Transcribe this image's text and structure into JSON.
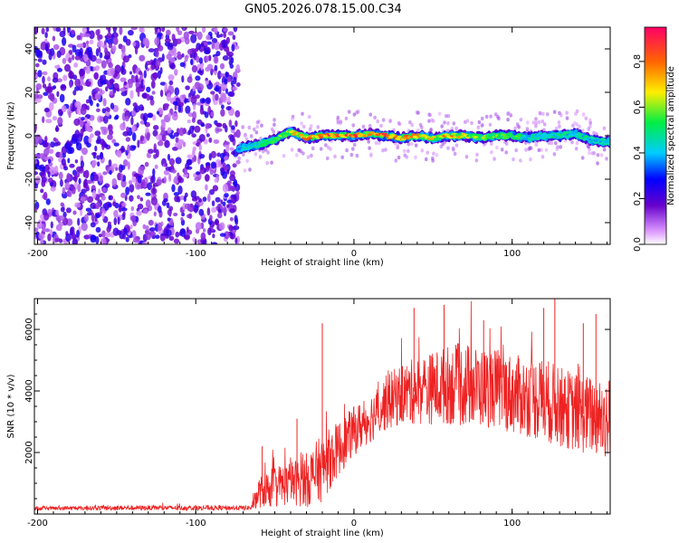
{
  "title": "GN05.2026.078.15.00.C34",
  "colors": {
    "trace": "#ee2222",
    "noise": "#8822ee",
    "axis": "#000000"
  },
  "chart_data": [
    {
      "type": "heatmap",
      "xlabel": "Height of straight line (km)",
      "ylabel": "Frequency (Hz)",
      "xlim": [
        -202,
        162
      ],
      "ylim": [
        -50,
        50
      ],
      "x_ticks": [
        -200,
        -100,
        0,
        100
      ],
      "x_tick_labels": [
        "-200",
        "-100",
        "0",
        "100"
      ],
      "y_ticks": [
        -40,
        -20,
        0,
        20,
        40
      ],
      "y_tick_labels": [
        "-40",
        "-20",
        "0",
        "20",
        "40"
      ],
      "noise_region_x": [
        -202,
        -73
      ],
      "signal_start_x": -73,
      "colorbar": {
        "label": "Normalized spectral amplitude",
        "range": [
          0,
          0.95
        ],
        "ticks": [
          0,
          0.2,
          0.4,
          0.6,
          0.8
        ],
        "tick_labels": [
          "0.0",
          "0.2",
          "0.4",
          "0.6",
          "0.8"
        ]
      },
      "ridge": {
        "x": [
          -73,
          -60,
          -50,
          -40,
          -30,
          -20,
          -10,
          0,
          10,
          20,
          30,
          40,
          50,
          60,
          70,
          80,
          90,
          100,
          110,
          120,
          130,
          140,
          150,
          162
        ],
        "freq": [
          -6,
          -4,
          -2,
          2,
          -1,
          0,
          0,
          0,
          1,
          0,
          -1,
          0,
          -1,
          0,
          0,
          -1,
          0,
          0,
          -1,
          0,
          0,
          1,
          -2,
          -3
        ],
        "amplitude": [
          0.4,
          0.5,
          0.6,
          0.7,
          0.8,
          0.9,
          0.9,
          0.9,
          0.8,
          0.9,
          0.8,
          0.8,
          0.7,
          0.8,
          0.7,
          0.6,
          0.6,
          0.6,
          0.5,
          0.5,
          0.5,
          0.5,
          0.5,
          0.5
        ]
      }
    },
    {
      "type": "line",
      "xlabel": "Height of straight line (km)",
      "ylabel": "SNR (10 * v/v)",
      "xlim": [
        -202,
        162
      ],
      "ylim": [
        0,
        7000
      ],
      "x_ticks": [
        -200,
        -100,
        0,
        100
      ],
      "x_tick_labels": [
        "-200",
        "-100",
        "0",
        "100"
      ],
      "y_ticks": [
        2000,
        4000,
        6000
      ],
      "y_tick_labels": [
        "2000",
        "4000",
        "6000"
      ],
      "series": [
        {
          "color": "#ee2222",
          "envelope_x": [
            -202,
            -150,
            -100,
            -65,
            -60,
            -50,
            -40,
            -30,
            -20,
            -10,
            0,
            10,
            20,
            30,
            40,
            50,
            60,
            70,
            80,
            90,
            100,
            110,
            120,
            130,
            140,
            150,
            162
          ],
          "mean": [
            180,
            200,
            200,
            200,
            700,
            900,
            1000,
            1100,
            1500,
            2100,
            2700,
            3100,
            3600,
            3900,
            4000,
            4100,
            4200,
            4200,
            4100,
            4100,
            3900,
            3800,
            3700,
            3500,
            3300,
            3200,
            3100
          ],
          "spread": [
            60,
            80,
            80,
            80,
            500,
            700,
            700,
            900,
            1100,
            900,
            800,
            800,
            900,
            1000,
            1100,
            1200,
            1300,
            1400,
            1300,
            1300,
            1300,
            1300,
            1400,
            1300,
            1300,
            1300,
            1400
          ],
          "spikes": [
            [
              -58,
              2200
            ],
            [
              -36,
              3100
            ],
            [
              -20,
              6200
            ],
            [
              38,
              6700
            ],
            [
              57,
              6800
            ],
            [
              82,
              6300
            ],
            [
              120,
              6700
            ],
            [
              127,
              7000
            ],
            [
              145,
              6200
            ],
            [
              153,
              6500
            ]
          ]
        }
      ]
    }
  ]
}
